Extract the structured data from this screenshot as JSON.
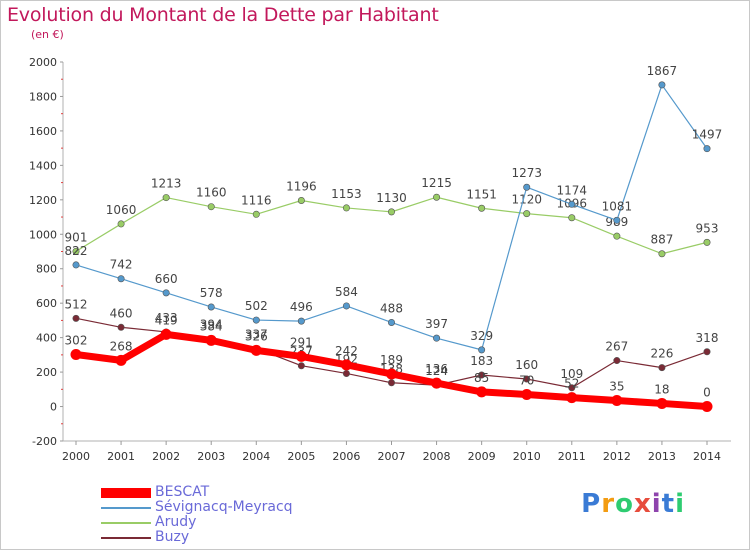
{
  "header": {
    "title": "Evolution du Montant de la Dette par Habitant",
    "subtitle": "(en €)"
  },
  "brand": {
    "text": "Proxiti",
    "letters": [
      "P",
      "r",
      "o",
      "x",
      "i",
      "t",
      "i"
    ],
    "colors": [
      "#3a7bd5",
      "#f39c12",
      "#2ecc71",
      "#e74c3c",
      "#8e44ad",
      "#3a7bd5",
      "#2ecc71"
    ]
  },
  "chart_data": {
    "type": "line",
    "x": [
      "2000",
      "2001",
      "2002",
      "2003",
      "2004",
      "2005",
      "2006",
      "2007",
      "2008",
      "2009",
      "2010",
      "2011",
      "2012",
      "2013",
      "2014"
    ],
    "ylim": [
      -200,
      2000
    ],
    "yticks": [
      "-200",
      "0",
      "200",
      "400",
      "600",
      "800",
      "1000",
      "1200",
      "1400",
      "1600",
      "1800",
      "2000"
    ],
    "grid": false,
    "legend_position": "bottom-left",
    "series": [
      {
        "name": "Arudy",
        "color": "#99cc66",
        "width": 1.2,
        "values": [
          901,
          1060,
          1213,
          1160,
          1116,
          1196,
          1153,
          1130,
          1215,
          1151,
          1120,
          1096,
          989,
          887,
          953
        ]
      },
      {
        "name": "Sévignacq-Meyracq",
        "color": "#5599cc",
        "width": 1.2,
        "values": [
          822,
          742,
          660,
          578,
          502,
          496,
          584,
          488,
          397,
          329,
          1273,
          1174,
          1081,
          1867,
          1497
        ]
      },
      {
        "name": "Buzy",
        "color": "#7a2a35",
        "width": 1.2,
        "values": [
          512,
          460,
          433,
          394,
          337,
          237,
          192,
          138,
          124,
          183,
          160,
          109,
          267,
          226,
          318
        ]
      },
      {
        "name": "BESCAT",
        "color": "#ff0000",
        "width": 7,
        "values": [
          302,
          268,
          419,
          384,
          326,
          291,
          242,
          189,
          136,
          85,
          70,
          52,
          35,
          18,
          0
        ]
      }
    ]
  }
}
